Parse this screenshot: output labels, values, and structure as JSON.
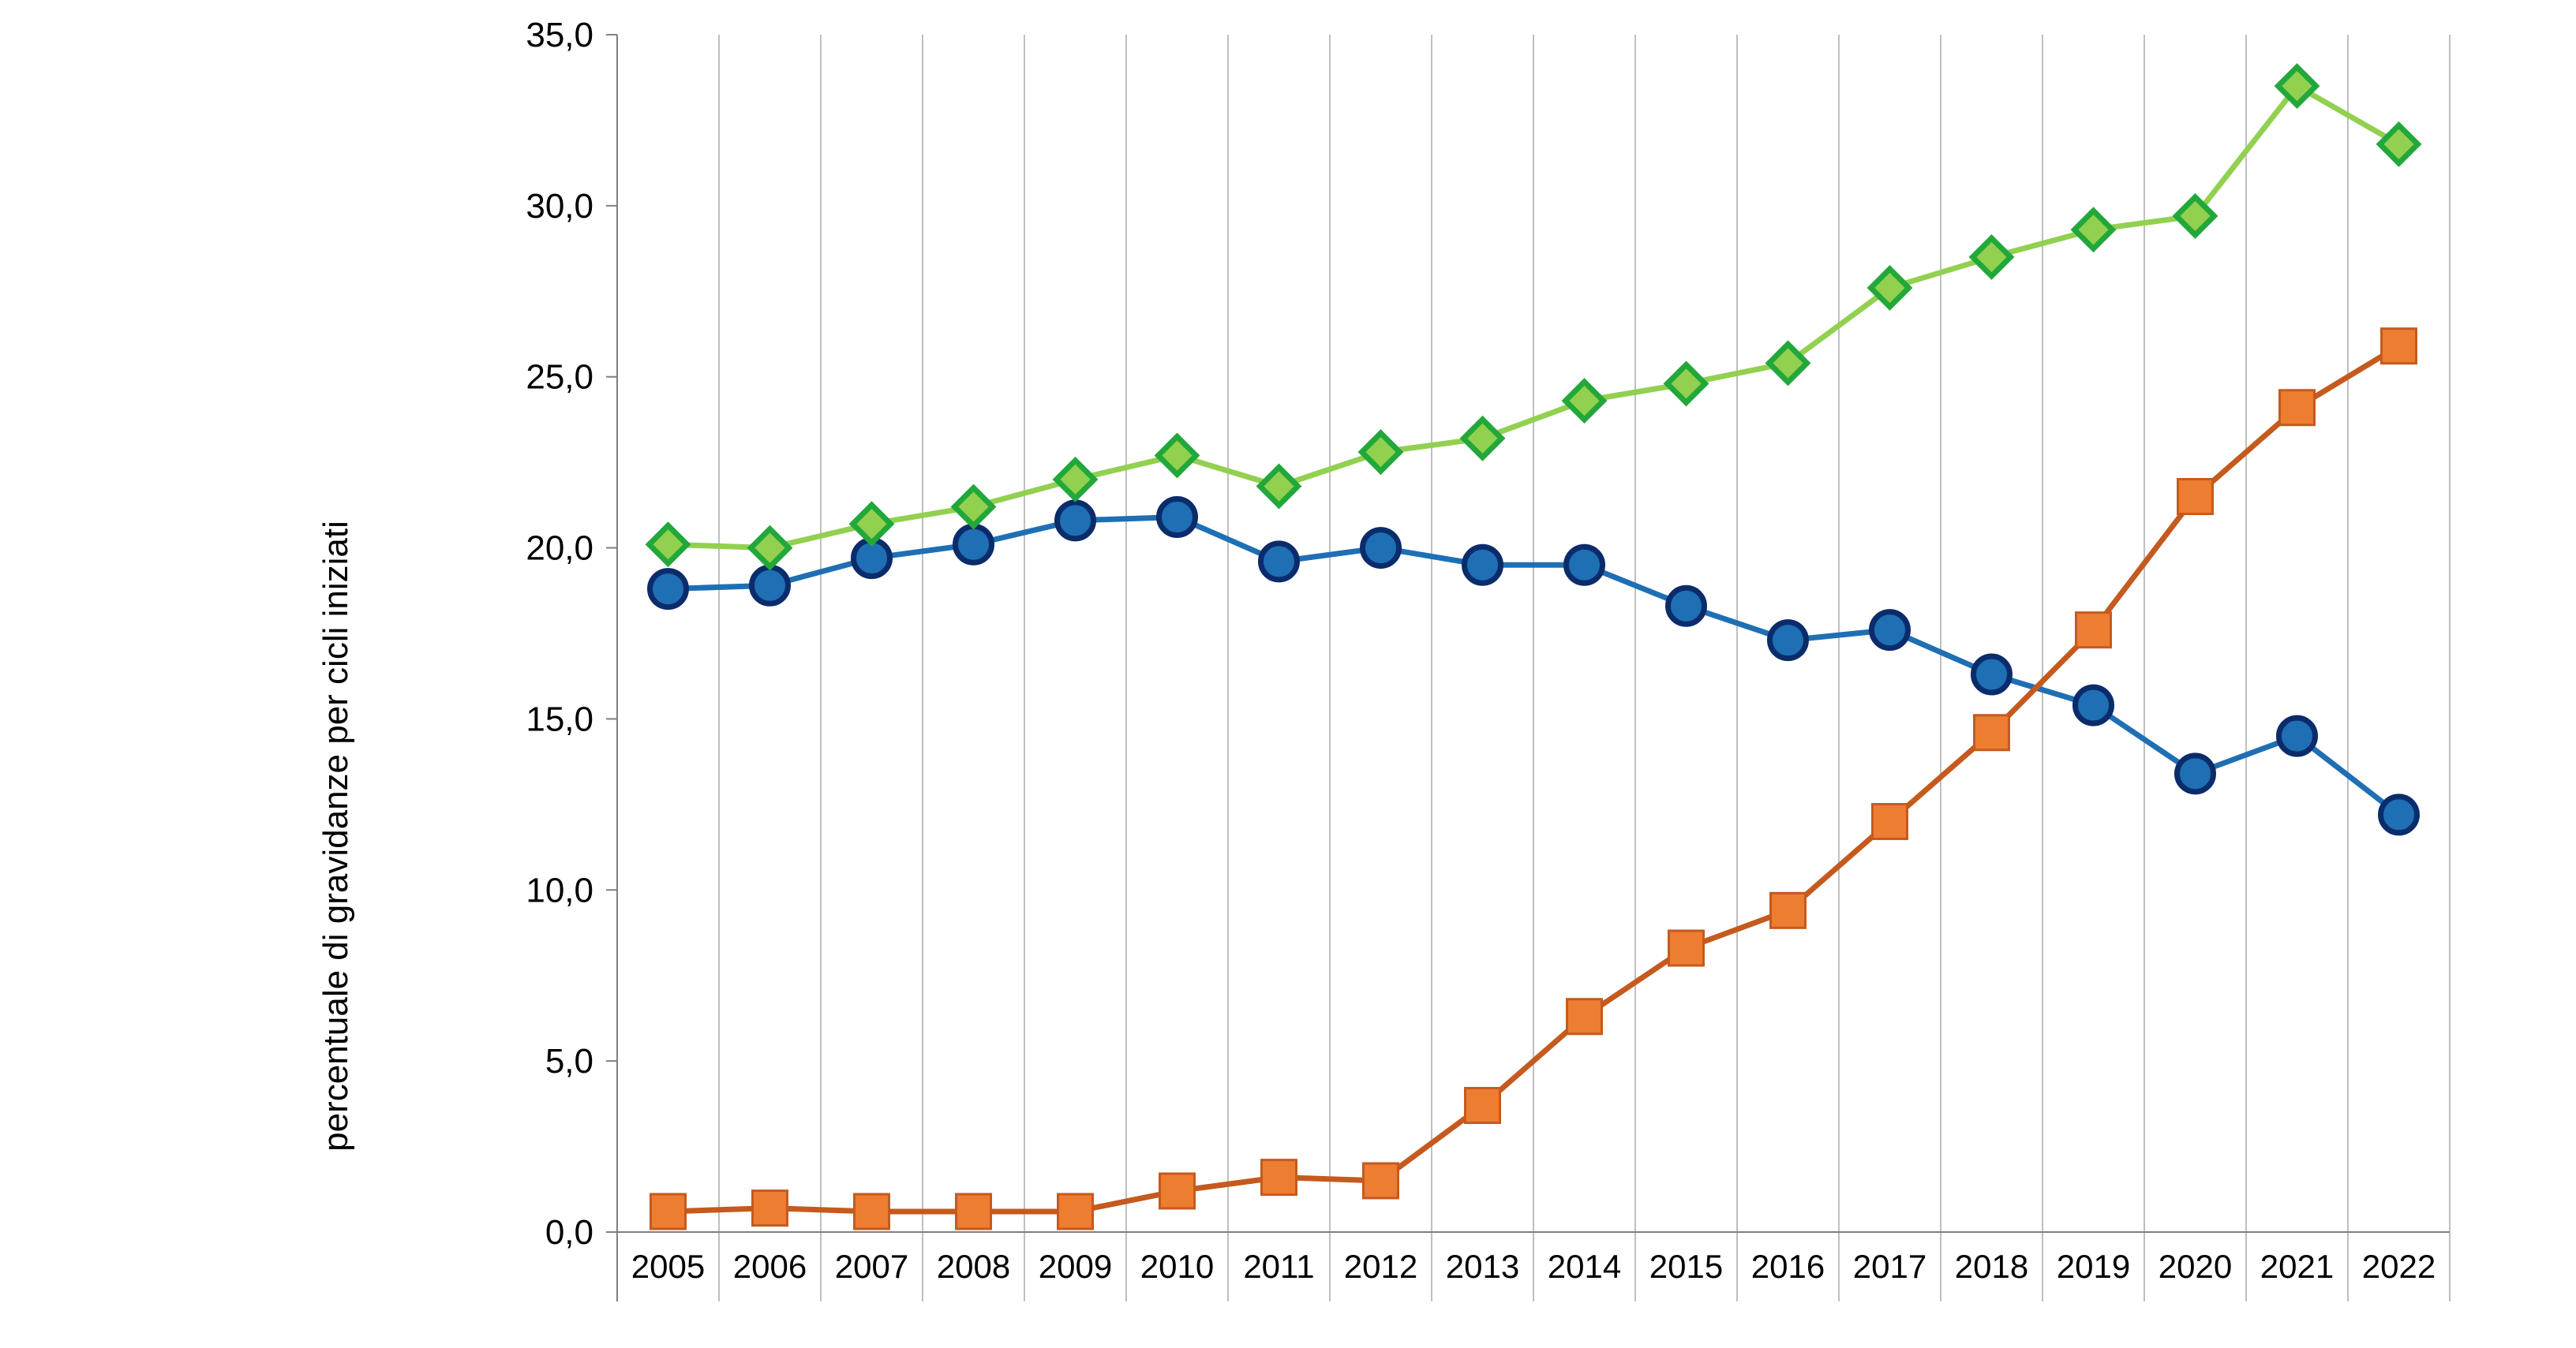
{
  "chart_data": {
    "type": "line",
    "title": "",
    "xlabel": "",
    "ylabel": "percentuale di gravidanze per cicli iniziati",
    "ylim": [
      0,
      35
    ],
    "yticks": [
      "0,0",
      "5,0",
      "10,0",
      "15,0",
      "20,0",
      "25,0",
      "30,0",
      "35,0"
    ],
    "categories": [
      "2005",
      "2006",
      "2007",
      "2008",
      "2009",
      "2010",
      "2011",
      "2012",
      "2013",
      "2014",
      "2015",
      "2016",
      "2017",
      "2018",
      "2019",
      "2020",
      "2021",
      "2022"
    ],
    "grid": "vertical",
    "legend": "none",
    "series": [
      {
        "marker": "circle",
        "color": "#1F6FB4",
        "marker_fill": "#1F6FB4",
        "marker_stroke": "#0B2C6B",
        "values": [
          18.8,
          18.9,
          19.7,
          20.1,
          20.8,
          20.9,
          19.6,
          20.0,
          19.5,
          19.5,
          18.3,
          17.3,
          17.6,
          16.3,
          15.4,
          13.4,
          14.5,
          12.2
        ]
      },
      {
        "marker": "square",
        "color": "#C55A1E",
        "marker_fill": "#ED7D31",
        "marker_stroke": "#C55A1E",
        "values": [
          0.6,
          0.7,
          0.6,
          0.6,
          0.6,
          1.2,
          1.6,
          1.5,
          3.7,
          6.3,
          8.3,
          9.4,
          12.0,
          14.6,
          17.6,
          21.5,
          24.1,
          25.9
        ]
      },
      {
        "marker": "diamond",
        "color": "#92D050",
        "marker_fill": "#92D050",
        "marker_stroke": "#22A83A",
        "values": [
          20.1,
          20.0,
          20.7,
          21.2,
          22.0,
          22.7,
          21.8,
          22.8,
          23.2,
          24.3,
          24.8,
          25.4,
          27.6,
          28.5,
          29.3,
          29.7,
          33.5,
          31.8
        ]
      }
    ]
  }
}
